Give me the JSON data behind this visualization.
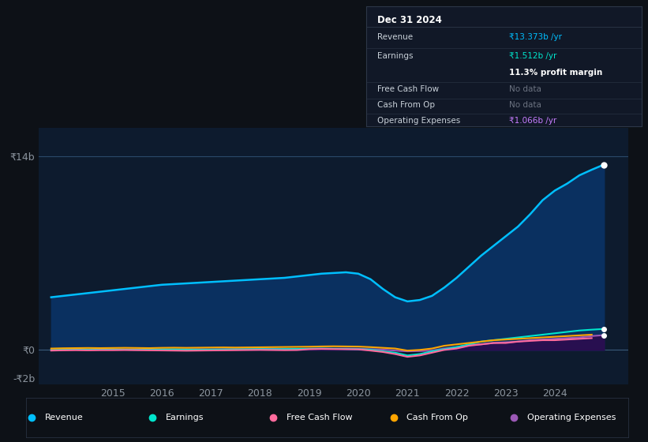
{
  "bg_color": "#0d1117",
  "plot_bg_color": "#0d1b2e",
  "grid_color": "#1e3a5f",
  "title_color": "#c9d1d9",
  "axis_label_color": "#8b949e",
  "ylim": [
    -2.5,
    16
  ],
  "xlim": [
    2013.5,
    2025.5
  ],
  "yticks": [
    -2,
    0,
    14
  ],
  "ytick_labels": [
    "-₹2b",
    "₹0",
    "₹14b"
  ],
  "xtick_labels": [
    "2015",
    "2016",
    "2017",
    "2018",
    "2019",
    "2020",
    "2021",
    "2022",
    "2023",
    "2024"
  ],
  "xtick_positions": [
    2015,
    2016,
    2017,
    2018,
    2019,
    2020,
    2021,
    2022,
    2023,
    2024
  ],
  "revenue_color": "#00bfff",
  "revenue_fill": "#0a3060",
  "earnings_color": "#00e5cc",
  "fcf_color": "#ff6b9d",
  "cashop_color": "#ffa500",
  "opex_color": "#9b59b6",
  "opex_fill": "#2e0a4e",
  "revenue_x": [
    2013.75,
    2014.0,
    2014.25,
    2014.5,
    2014.75,
    2015.0,
    2015.25,
    2015.5,
    2015.75,
    2016.0,
    2016.25,
    2016.5,
    2016.75,
    2017.0,
    2017.25,
    2017.5,
    2017.75,
    2018.0,
    2018.25,
    2018.5,
    2018.75,
    2019.0,
    2019.25,
    2019.5,
    2019.75,
    2020.0,
    2020.25,
    2020.5,
    2020.75,
    2021.0,
    2021.25,
    2021.5,
    2021.75,
    2022.0,
    2022.25,
    2022.5,
    2022.75,
    2023.0,
    2023.25,
    2023.5,
    2023.75,
    2024.0,
    2024.25,
    2024.5,
    2024.75,
    2025.0
  ],
  "revenue_y": [
    3.8,
    3.9,
    4.0,
    4.1,
    4.2,
    4.3,
    4.4,
    4.5,
    4.6,
    4.7,
    4.75,
    4.8,
    4.85,
    4.9,
    4.95,
    5.0,
    5.05,
    5.1,
    5.15,
    5.2,
    5.3,
    5.4,
    5.5,
    5.55,
    5.6,
    5.5,
    5.1,
    4.4,
    3.8,
    3.5,
    3.6,
    3.9,
    4.5,
    5.2,
    6.0,
    6.8,
    7.5,
    8.2,
    8.9,
    9.8,
    10.8,
    11.5,
    12.0,
    12.6,
    13.0,
    13.373
  ],
  "earnings_x": [
    2013.75,
    2014.0,
    2014.25,
    2014.5,
    2014.75,
    2015.0,
    2015.25,
    2015.5,
    2015.75,
    2016.0,
    2016.25,
    2016.5,
    2016.75,
    2017.0,
    2017.25,
    2017.5,
    2017.75,
    2018.0,
    2018.25,
    2018.5,
    2018.75,
    2019.0,
    2019.25,
    2019.5,
    2019.75,
    2020.0,
    2020.25,
    2020.5,
    2020.75,
    2021.0,
    2021.25,
    2021.5,
    2021.75,
    2022.0,
    2022.25,
    2022.5,
    2022.75,
    2023.0,
    2023.25,
    2023.5,
    2023.75,
    2024.0,
    2024.25,
    2024.5,
    2024.75,
    2025.0
  ],
  "earnings_y": [
    0.0,
    0.02,
    0.03,
    0.02,
    0.03,
    0.04,
    0.02,
    0.01,
    0.02,
    0.03,
    0.04,
    0.02,
    0.01,
    0.02,
    0.03,
    0.04,
    0.05,
    0.06,
    0.05,
    0.06,
    0.07,
    0.08,
    0.09,
    0.08,
    0.07,
    0.05,
    0.01,
    -0.1,
    -0.2,
    -0.4,
    -0.3,
    -0.1,
    0.05,
    0.2,
    0.4,
    0.6,
    0.7,
    0.8,
    0.9,
    1.0,
    1.1,
    1.2,
    1.3,
    1.4,
    1.46,
    1.512
  ],
  "fcf_x": [
    2013.75,
    2014.0,
    2014.25,
    2014.5,
    2014.75,
    2015.0,
    2015.25,
    2015.5,
    2015.75,
    2016.0,
    2016.25,
    2016.5,
    2016.75,
    2017.0,
    2017.25,
    2017.5,
    2017.75,
    2018.0,
    2018.25,
    2018.5,
    2018.75,
    2019.0,
    2019.25,
    2019.5,
    2019.75,
    2020.0,
    2020.25,
    2020.5,
    2020.75,
    2021.0,
    2021.25,
    2021.5,
    2021.75,
    2022.0,
    2022.25,
    2022.5,
    2022.75,
    2023.0,
    2023.25,
    2023.5,
    2023.75,
    2024.0,
    2024.25,
    2024.5,
    2024.75
  ],
  "fcf_y": [
    -0.05,
    -0.03,
    -0.02,
    -0.03,
    -0.02,
    -0.02,
    -0.01,
    -0.02,
    -0.03,
    -0.04,
    -0.05,
    -0.06,
    -0.05,
    -0.04,
    -0.03,
    -0.02,
    -0.01,
    0.0,
    -0.01,
    -0.02,
    -0.01,
    0.05,
    0.07,
    0.06,
    0.05,
    0.04,
    -0.05,
    -0.15,
    -0.3,
    -0.5,
    -0.4,
    -0.2,
    0.0,
    0.1,
    0.3,
    0.4,
    0.5,
    0.5,
    0.6,
    0.65,
    0.7,
    0.7,
    0.75,
    0.8,
    0.85
  ],
  "cashop_x": [
    2013.75,
    2014.0,
    2014.25,
    2014.5,
    2014.75,
    2015.0,
    2015.25,
    2015.5,
    2015.75,
    2016.0,
    2016.25,
    2016.5,
    2016.75,
    2017.0,
    2017.25,
    2017.5,
    2017.75,
    2018.0,
    2018.25,
    2018.5,
    2018.75,
    2019.0,
    2019.25,
    2019.5,
    2019.75,
    2020.0,
    2020.25,
    2020.5,
    2020.75,
    2021.0,
    2021.25,
    2021.5,
    2021.75,
    2022.0,
    2022.25,
    2022.5,
    2022.75,
    2023.0,
    2023.25,
    2023.5,
    2023.75,
    2024.0,
    2024.25,
    2024.5,
    2024.75
  ],
  "cashop_y": [
    0.1,
    0.12,
    0.13,
    0.14,
    0.13,
    0.14,
    0.15,
    0.14,
    0.13,
    0.15,
    0.16,
    0.15,
    0.16,
    0.17,
    0.18,
    0.17,
    0.18,
    0.19,
    0.2,
    0.21,
    0.22,
    0.23,
    0.25,
    0.26,
    0.25,
    0.24,
    0.2,
    0.15,
    0.1,
    -0.05,
    0.0,
    0.1,
    0.3,
    0.4,
    0.5,
    0.6,
    0.7,
    0.75,
    0.8,
    0.85,
    0.9,
    0.95,
    1.0,
    1.05,
    1.1
  ],
  "opex_x": [
    2013.75,
    2014.0,
    2014.25,
    2014.5,
    2014.75,
    2015.0,
    2015.25,
    2015.5,
    2015.75,
    2016.0,
    2016.25,
    2016.5,
    2016.75,
    2017.0,
    2017.25,
    2017.5,
    2017.75,
    2018.0,
    2018.25,
    2018.5,
    2018.75,
    2019.0,
    2019.25,
    2019.5,
    2019.75,
    2020.0,
    2020.25,
    2020.5,
    2020.75,
    2021.0,
    2021.25,
    2021.5,
    2021.75,
    2022.0,
    2022.25,
    2022.5,
    2022.75,
    2023.0,
    2023.25,
    2023.5,
    2023.75,
    2024.0,
    2024.25,
    2024.5,
    2024.75,
    2025.0
  ],
  "opex_y": [
    0.0,
    0.01,
    0.02,
    0.01,
    0.02,
    0.02,
    0.03,
    0.02,
    0.03,
    0.04,
    0.03,
    0.04,
    0.05,
    0.04,
    0.05,
    0.06,
    0.05,
    0.06,
    0.07,
    0.06,
    0.07,
    0.08,
    0.09,
    0.08,
    0.09,
    0.08,
    0.05,
    0.02,
    -0.05,
    -0.1,
    -0.08,
    -0.05,
    0.1,
    0.2,
    0.35,
    0.4,
    0.5,
    0.55,
    0.6,
    0.7,
    0.75,
    0.8,
    0.85,
    0.9,
    1.0,
    1.066
  ],
  "info_box": {
    "date": "Dec 31 2024",
    "revenue_label": "Revenue",
    "revenue_value": "₹13.373b /yr",
    "revenue_color": "#00bfff",
    "earnings_label": "Earnings",
    "earnings_value": "₹1.512b /yr",
    "earnings_color": "#00e5cc",
    "margin_text": "11.3% profit margin",
    "fcf_label": "Free Cash Flow",
    "fcf_value": "No data",
    "cashop_label": "Cash From Op",
    "cashop_value": "No data",
    "opex_label": "Operating Expenses",
    "opex_value": "₹1.066b /yr",
    "opex_color": "#c77dff",
    "box_bg": "#111827",
    "box_border": "#2d3748",
    "text_color": "#c9d1d9",
    "nodata_color": "#6b7280"
  },
  "legend": [
    {
      "label": "Revenue",
      "color": "#00bfff"
    },
    {
      "label": "Earnings",
      "color": "#00e5cc"
    },
    {
      "label": "Free Cash Flow",
      "color": "#ff6b9d"
    },
    {
      "label": "Cash From Op",
      "color": "#ffa500"
    },
    {
      "label": "Operating Expenses",
      "color": "#9b59b6"
    }
  ]
}
